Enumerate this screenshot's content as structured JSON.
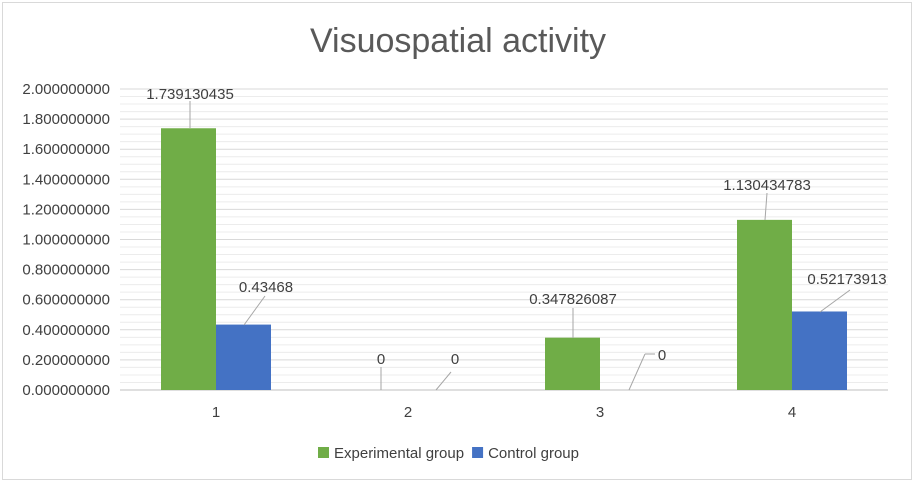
{
  "chart_data": {
    "type": "bar",
    "title": "Visuospatial activity",
    "xlabel": "",
    "ylabel": "",
    "categories": [
      "1",
      "2",
      "3",
      "4"
    ],
    "series": [
      {
        "name": "Experimental group",
        "color": "#70ad47",
        "values": [
          1.739130435,
          0,
          0.347826087,
          1.130434783
        ],
        "labels": [
          "1.739130435",
          "0",
          "0.347826087",
          "1.130434783"
        ]
      },
      {
        "name": "Control group",
        "color": "#4472c4",
        "values": [
          0.43468,
          0,
          0,
          0.52173913
        ],
        "labels": [
          "0.43468",
          "0",
          "0",
          "0.52173913"
        ]
      }
    ],
    "ylim": [
      0,
      2
    ],
    "yticks": [
      "0.000000000",
      "0.200000000",
      "0.400000000",
      "0.600000000",
      "0.800000000",
      "1.000000000",
      "1.200000000",
      "1.400000000",
      "1.600000000",
      "1.800000000",
      "2.000000000"
    ],
    "grid": true,
    "legend": "bottom"
  }
}
